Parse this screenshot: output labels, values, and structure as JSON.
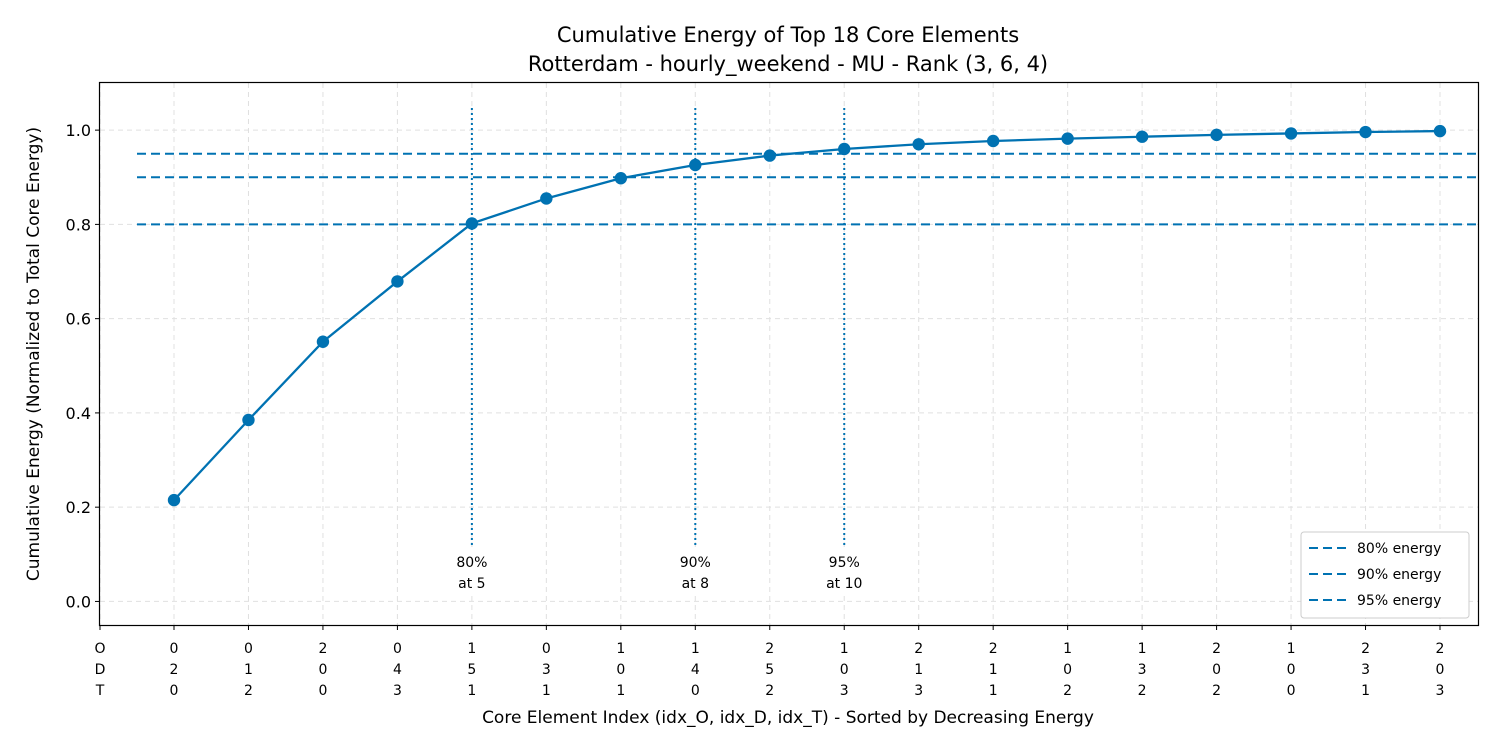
{
  "chart_data": {
    "type": "line",
    "title": "Cumulative Energy of Top 18 Core Elements",
    "subtitle": "Rotterdam - hourly_weekend - MU - Rank (3, 6, 4)",
    "xlabel": "Core Element Index (idx_O, idx_D, idx_T) - Sorted by Decreasing Energy",
    "ylabel": "Cumulative Energy (Normalized to Total Core Energy)",
    "ylim": [
      -0.05,
      1.1
    ],
    "yticks": [
      "0.0",
      "0.2",
      "0.4",
      "0.6",
      "0.8",
      "1.0"
    ],
    "ytick_values": [
      0.0,
      0.2,
      0.4,
      0.6,
      0.8,
      1.0
    ],
    "axis_key": [
      "O",
      "D",
      "T"
    ],
    "categories": [
      [
        "0",
        "2",
        "0"
      ],
      [
        "0",
        "1",
        "2"
      ],
      [
        "2",
        "0",
        "0"
      ],
      [
        "0",
        "4",
        "3"
      ],
      [
        "1",
        "5",
        "1"
      ],
      [
        "0",
        "3",
        "1"
      ],
      [
        "1",
        "0",
        "1"
      ],
      [
        "1",
        "4",
        "0"
      ],
      [
        "2",
        "5",
        "2"
      ],
      [
        "1",
        "0",
        "3"
      ],
      [
        "2",
        "1",
        "3"
      ],
      [
        "2",
        "1",
        "1"
      ],
      [
        "1",
        "0",
        "2"
      ],
      [
        "1",
        "3",
        "2"
      ],
      [
        "2",
        "0",
        "2"
      ],
      [
        "1",
        "0",
        "0"
      ],
      [
        "2",
        "3",
        "1"
      ],
      [
        "2",
        "0",
        "3"
      ]
    ],
    "series": [
      {
        "values": [
          0.215,
          0.385,
          0.551,
          0.679,
          0.802,
          0.855,
          0.898,
          0.926,
          0.946,
          0.96,
          0.97,
          0.977,
          0.982,
          0.986,
          0.99,
          0.993,
          0.996,
          0.998
        ]
      }
    ],
    "thresholds": [
      {
        "level": 0.8,
        "legend": "80% energy",
        "annotation": [
          "80%",
          "at 5"
        ],
        "index": 5
      },
      {
        "level": 0.9,
        "legend": "90% energy",
        "annotation": [
          "90%",
          "at 8"
        ],
        "index": 8
      },
      {
        "level": 0.95,
        "legend": "95% energy",
        "annotation": [
          "95%",
          "at 10"
        ],
        "index": 10
      }
    ],
    "grid": true,
    "legend_position": "lower-right",
    "colors": {
      "line": "#0072b2",
      "threshold": "#0072b2",
      "grid": "#e0e0e0"
    }
  }
}
